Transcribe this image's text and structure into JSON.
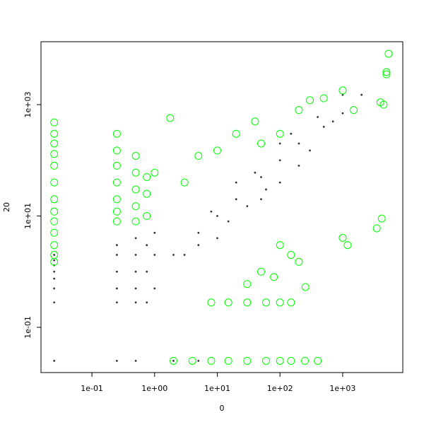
{
  "chart_data": {
    "type": "scatter",
    "x_label": "0",
    "y_label": "20",
    "xlog": true,
    "ylog": true,
    "xlim": [
      0.0154,
      9100
    ],
    "ylim": [
      0.0154,
      13500
    ],
    "xticks": [
      {
        "value": 0.1,
        "label": "1e-01"
      },
      {
        "value": 1,
        "label": "1e+00"
      },
      {
        "value": 10,
        "label": "1e+01"
      },
      {
        "value": 100,
        "label": "1e+02"
      },
      {
        "value": 1000,
        "label": "1e+03"
      }
    ],
    "yticks": [
      {
        "value": 0.1,
        "label": "1e-01"
      },
      {
        "value": 10,
        "label": "1e+01"
      },
      {
        "value": 1000,
        "label": "1e+03"
      }
    ],
    "series": [
      {
        "color": "#000000",
        "marker": "dot",
        "x": [
          0.025,
          0.025,
          0.025,
          0.025,
          0.025,
          0.025,
          0.025,
          0.025,
          0.25,
          0.25,
          0.25,
          0.25,
          0.25,
          0.25,
          0.5,
          0.5,
          0.5,
          0.5,
          0.5,
          0.5,
          0.75,
          0.75,
          0.75,
          1,
          1,
          1,
          2,
          5,
          10,
          20,
          50,
          100,
          200,
          500,
          1000,
          300,
          30,
          10,
          5,
          50,
          100,
          100,
          20,
          200,
          3,
          15,
          40,
          150,
          400,
          700,
          2000,
          1000,
          60,
          8,
          2,
          5
        ],
        "values": [
          0.025,
          0.28,
          0.5,
          0.75,
          1,
          1.3,
          1.6,
          2,
          0.025,
          0.28,
          0.5,
          1,
          2,
          3,
          0.025,
          0.28,
          0.5,
          1,
          2,
          4,
          0.28,
          1,
          3,
          0.5,
          2,
          5,
          2,
          5,
          10,
          20,
          50,
          100,
          200,
          400,
          700,
          150,
          15,
          4,
          3,
          20,
          40,
          200,
          40,
          80,
          2,
          8,
          60,
          300,
          600,
          500,
          1500,
          1500,
          30,
          12,
          0.025,
          0.025
        ]
      },
      {
        "color": "#00ff00",
        "marker": "circle",
        "x": [
          0.025,
          0.025,
          0.025,
          0.025,
          0.025,
          0.025,
          0.025,
          0.025,
          0.025,
          0.025,
          0.025,
          0.025,
          0.025,
          0.25,
          0.25,
          0.25,
          0.25,
          0.25,
          0.25,
          0.25,
          0.5,
          0.5,
          0.5,
          0.5,
          0.5,
          0.75,
          0.75,
          0.75,
          1,
          1.77,
          5,
          3,
          10,
          20,
          40,
          50,
          100,
          200,
          300,
          500,
          1000,
          1500,
          5000,
          4000,
          4500,
          5400,
          5000,
          1000,
          1200,
          3500,
          4200,
          100,
          200,
          150,
          255,
          50,
          80,
          30,
          8,
          15,
          30,
          60,
          100,
          150,
          2,
          4,
          8,
          15,
          30,
          60,
          100,
          150,
          250,
          400
        ],
        "values": [
          1.5,
          2,
          3,
          5,
          8,
          12,
          20,
          40,
          80,
          130,
          200,
          300,
          480,
          8,
          12,
          20,
          40,
          80,
          150,
          300,
          8,
          15,
          30,
          60,
          120,
          10,
          25,
          50,
          60,
          575,
          120,
          40,
          150,
          300,
          500,
          200,
          300,
          800,
          1200,
          1300,
          1800,
          800,
          3500,
          1100,
          1000,
          8200,
          3840,
          4.05,
          3,
          6,
          9,
          3,
          1.5,
          2,
          0.53,
          1,
          0.8,
          0.6,
          0.28,
          0.28,
          0.28,
          0.28,
          0.28,
          0.28,
          0.025,
          0.025,
          0.025,
          0.025,
          0.025,
          0.025,
          0.025,
          0.025,
          0.025,
          0.025
        ]
      }
    ]
  }
}
